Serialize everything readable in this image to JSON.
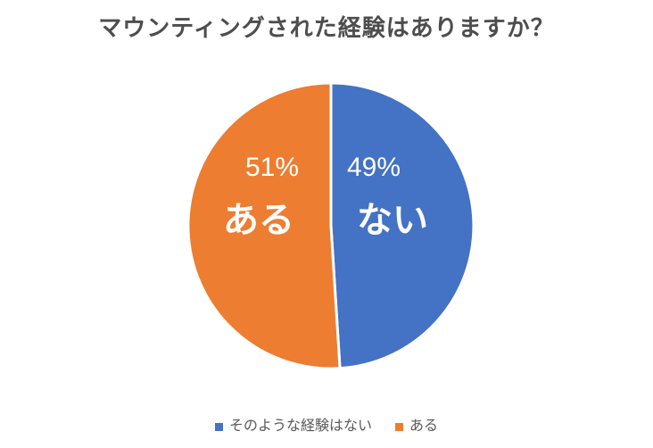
{
  "chart_data": {
    "type": "pie",
    "title": "マウンティングされた経験はありますか？",
    "categories": [
      "そのような経験はない",
      "ある"
    ],
    "values": [
      49,
      51
    ],
    "unit": "%",
    "slices": [
      {
        "label": "ない",
        "legend_label": "そのような経験はない",
        "value": 49,
        "pct_label": "49%",
        "color": "#4472C4"
      },
      {
        "label": "ある",
        "legend_label": "ある",
        "value": 51,
        "pct_label": "51%",
        "color": "#ED7D31"
      }
    ],
    "start_angle_deg": 0,
    "direction": "clockwise",
    "legend_position": "bottom",
    "title_color": "#4d4d4d",
    "legend_text_color": "#595959",
    "data_label_color": "#ffffff",
    "slice_gap_color": "#ffffff",
    "background_color": "#ffffff"
  }
}
